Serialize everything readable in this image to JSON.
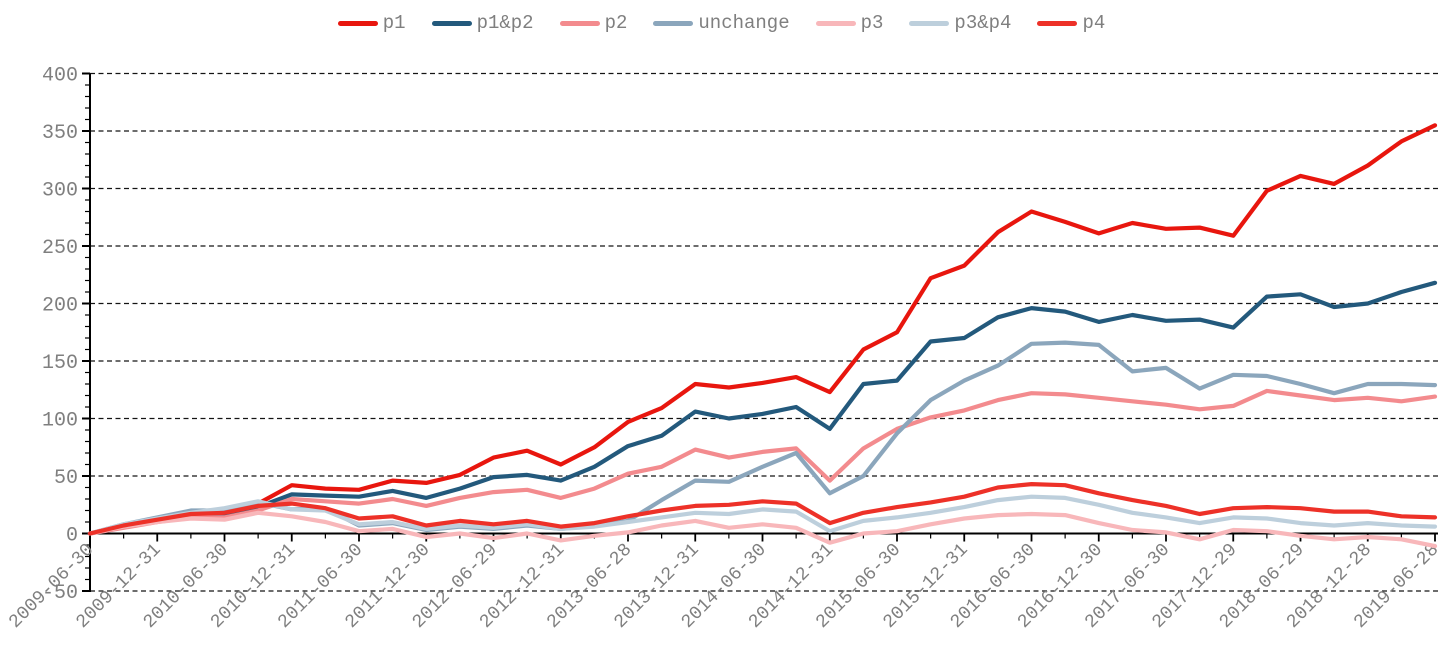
{
  "text_color": "#7f7f7f",
  "axis_color": "#000000",
  "grid_color": "#141414",
  "background": "#ffffff",
  "chart_data": {
    "type": "line",
    "title": "",
    "xlabel": "",
    "ylabel": "",
    "ylim": [
      -50,
      400
    ],
    "grid": "dashed horizontal",
    "legend_position": "top-center",
    "y_tick_labels": [
      "-50",
      "0",
      "50",
      "100",
      "150",
      "200",
      "250",
      "300",
      "350",
      "400"
    ],
    "y_ticks": [
      -50,
      0,
      50,
      100,
      150,
      200,
      250,
      300,
      350,
      400
    ],
    "y_gridlines": [
      -50,
      50,
      100,
      150,
      200,
      250,
      300,
      350,
      400
    ],
    "y_minor_step": 10,
    "x": [
      "2009-06-30",
      "2009-09-30",
      "2009-12-31",
      "2010-03-31",
      "2010-06-30",
      "2010-09-30",
      "2010-12-31",
      "2011-03-31",
      "2011-06-30",
      "2011-09-30",
      "2011-12-30",
      "2012-03-30",
      "2012-06-29",
      "2012-09-28",
      "2012-12-31",
      "2013-03-29",
      "2013-06-28",
      "2013-09-30",
      "2013-12-31",
      "2014-03-31",
      "2014-06-30",
      "2014-09-30",
      "2014-12-31",
      "2015-03-31",
      "2015-06-30",
      "2015-09-30",
      "2015-12-31",
      "2016-03-31",
      "2016-06-30",
      "2016-09-30",
      "2016-12-30",
      "2017-03-31",
      "2017-06-30",
      "2017-09-29",
      "2017-12-29",
      "2018-03-30",
      "2018-06-29",
      "2018-09-28",
      "2018-12-28",
      "2019-03-29",
      "2019-06-28"
    ],
    "x_tick_label_every": 2,
    "x_tick_labels": [
      "2009-06-30",
      "2009-12-31",
      "2010-06-30",
      "2010-12-31",
      "2011-06-30",
      "2011-12-30",
      "2012-06-29",
      "2012-12-31",
      "2013-06-28",
      "2013-12-31",
      "2014-06-30",
      "2014-12-31",
      "2015-06-30",
      "2015-12-31",
      "2016-06-30",
      "2016-12-30",
      "2017-06-30",
      "2017-12-29",
      "2018-06-29",
      "2018-12-28",
      "2019-06-28"
    ],
    "series": [
      {
        "name": "p1",
        "color": "#e8160e",
        "values": [
          0,
          7,
          12,
          17,
          18,
          26,
          42,
          39,
          38,
          46,
          44,
          51,
          66,
          72,
          60,
          75,
          97,
          109,
          130,
          127,
          131,
          136,
          123,
          160,
          175,
          222,
          233,
          262,
          280,
          271,
          261,
          270,
          265,
          266,
          259,
          298,
          311,
          304,
          320,
          341,
          355
        ]
      },
      {
        "name": "p1&p2",
        "color": "#23597c",
        "values": [
          0,
          6,
          11,
          16,
          17,
          23,
          34,
          33,
          32,
          37,
          31,
          39,
          49,
          51,
          46,
          58,
          76,
          85,
          106,
          100,
          104,
          110,
          91,
          130,
          133,
          167,
          170,
          188,
          196,
          193,
          184,
          190,
          185,
          186,
          179,
          206,
          208,
          197,
          200,
          210,
          218
        ]
      },
      {
        "name": "p2",
        "color": "#f38b8e",
        "values": [
          0,
          5,
          10,
          14,
          14,
          20,
          30,
          28,
          26,
          30,
          24,
          31,
          36,
          38,
          31,
          39,
          52,
          58,
          73,
          66,
          71,
          74,
          46,
          74,
          91,
          101,
          107,
          116,
          122,
          121,
          118,
          115,
          112,
          108,
          111,
          124,
          120,
          116,
          118,
          115,
          119
        ]
      },
      {
        "name": "unchange",
        "color": "#8ba6bc",
        "values": [
          0,
          8,
          14,
          20,
          20,
          27,
          21,
          22,
          7,
          9,
          3,
          6,
          4,
          7,
          4,
          7,
          11,
          29,
          46,
          45,
          58,
          70,
          35,
          50,
          87,
          116,
          133,
          146,
          165,
          166,
          164,
          141,
          144,
          126,
          138,
          137,
          130,
          122,
          130,
          130,
          129
        ]
      },
      {
        "name": "p3",
        "color": "#f8b7ba",
        "values": [
          0,
          6,
          10,
          13,
          12,
          18,
          15,
          10,
          2,
          4,
          -3,
          0,
          -4,
          0,
          -6,
          -2,
          1,
          7,
          11,
          5,
          8,
          5,
          -8,
          0,
          2,
          8,
          13,
          16,
          17,
          16,
          9,
          3,
          1,
          -5,
          3,
          2,
          -2,
          -5,
          -3,
          -5,
          -11
        ]
      },
      {
        "name": "p3&p4",
        "color": "#bdcfdc",
        "values": [
          0,
          8,
          13,
          18,
          22,
          28,
          21,
          20,
          8,
          10,
          4,
          7,
          5,
          8,
          4,
          6,
          10,
          14,
          18,
          17,
          21,
          19,
          2,
          11,
          14,
          18,
          23,
          29,
          32,
          31,
          25,
          18,
          14,
          9,
          14,
          13,
          9,
          7,
          9,
          7,
          6
        ]
      },
      {
        "name": "p4",
        "color": "#ed3128",
        "values": [
          0,
          7,
          12,
          17,
          18,
          24,
          26,
          22,
          13,
          15,
          7,
          11,
          8,
          11,
          6,
          9,
          15,
          20,
          24,
          25,
          28,
          26,
          9,
          18,
          23,
          27,
          32,
          40,
          43,
          42,
          35,
          29,
          24,
          17,
          22,
          23,
          22,
          19,
          19,
          15,
          14
        ]
      }
    ]
  }
}
